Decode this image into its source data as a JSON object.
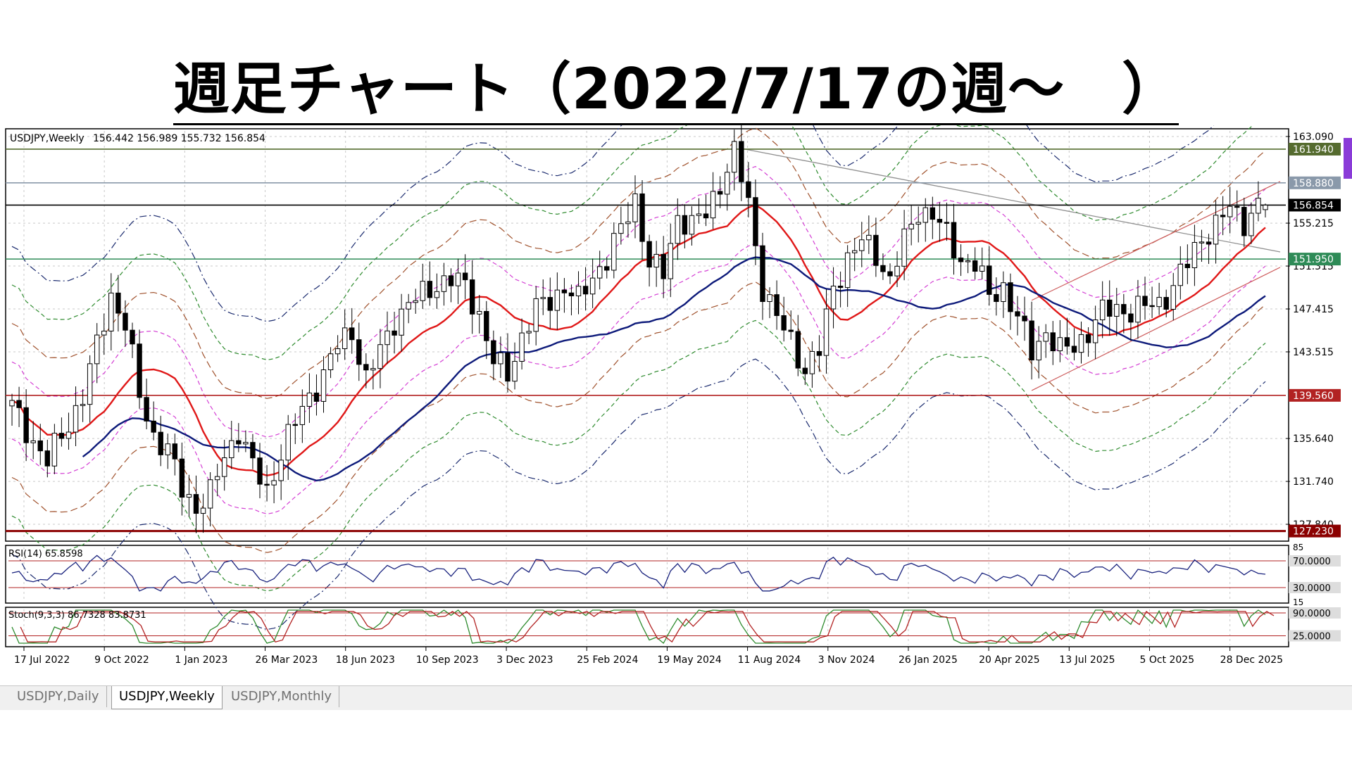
{
  "title": "週足チャート（2022/7/17の週～　）",
  "chart_data": {
    "type": "candlestick",
    "symbol_label": "USDJPY,Weekly",
    "ohlc_label": "156.442 156.989 155.732 156.854",
    "ohlc": {
      "open": 156.442,
      "high": 156.989,
      "low": 155.732,
      "close": 156.854
    },
    "y_ticks": [
      "163.090",
      "155.215",
      "151.315",
      "147.415",
      "143.515",
      "135.640",
      "131.740",
      "127.840"
    ],
    "y_range": [
      126.5,
      163.6
    ],
    "price_marks": [
      {
        "label": "161.940",
        "value": 161.94,
        "color": "#556b2f"
      },
      {
        "label": "158.880",
        "value": 158.88,
        "color": "#8a99aa"
      },
      {
        "label": "156.854",
        "value": 156.854,
        "color": "#000000"
      },
      {
        "label": "151.950",
        "value": 151.95,
        "color": "#2e8b57"
      },
      {
        "label": "139.560",
        "value": 139.56,
        "color": "#b22222"
      },
      {
        "label": "127.230",
        "value": 127.23,
        "color": "#8b0000"
      }
    ],
    "x_labels": [
      "17 Jul 2022",
      "9 Oct 2022",
      "1 Jan 2023",
      "26 Mar 2023",
      "18 Jun 2023",
      "10 Sep 2023",
      "3 Dec 2023",
      "25 Feb 2024",
      "19 May 2024",
      "11 Aug 2024",
      "3 Nov 2024",
      "26 Jan 2025",
      "20 Apr 2025",
      "13 Jul 2025",
      "5 Oct 2025",
      "28 Dec 2025"
    ],
    "weekly_close_anchors": [
      [
        0,
        138.5
      ],
      [
        5,
        133.5
      ],
      [
        10,
        139.5
      ],
      [
        12,
        144.0
      ],
      [
        14,
        148.8
      ],
      [
        16,
        146.0
      ],
      [
        18,
        139.5
      ],
      [
        20,
        136.0
      ],
      [
        22,
        134.5
      ],
      [
        24,
        131.0
      ],
      [
        26,
        129.5
      ],
      [
        28,
        130.5
      ],
      [
        30,
        134.0
      ],
      [
        32,
        136.5
      ],
      [
        34,
        133.0
      ],
      [
        36,
        130.8
      ],
      [
        38,
        134.5
      ],
      [
        40,
        137.0
      ],
      [
        42,
        139.5
      ],
      [
        44,
        141.5
      ],
      [
        46,
        144.0
      ],
      [
        48,
        145.5
      ],
      [
        50,
        141.0
      ],
      [
        52,
        143.5
      ],
      [
        54,
        146.5
      ],
      [
        56,
        147.8
      ],
      [
        58,
        148.7
      ],
      [
        60,
        149.8
      ],
      [
        62,
        150.0
      ],
      [
        64,
        149.5
      ],
      [
        66,
        147.0
      ],
      [
        68,
        142.5
      ],
      [
        70,
        141.5
      ],
      [
        72,
        145.0
      ],
      [
        74,
        147.3
      ],
      [
        76,
        148.3
      ],
      [
        78,
        149.5
      ],
      [
        80,
        148.0
      ],
      [
        82,
        150.5
      ],
      [
        84,
        152.0
      ],
      [
        86,
        154.5
      ],
      [
        88,
        157.5
      ],
      [
        90,
        151.5
      ],
      [
        92,
        150.5
      ],
      [
        94,
        156.0
      ],
      [
        96,
        155.0
      ],
      [
        98,
        156.0
      ],
      [
        100,
        159.0
      ],
      [
        102,
        161.5
      ],
      [
        104,
        157.0
      ],
      [
        106,
        149.5
      ],
      [
        108,
        146.5
      ],
      [
        110,
        144.5
      ],
      [
        112,
        142.0
      ],
      [
        114,
        143.5
      ],
      [
        116,
        149.5
      ],
      [
        118,
        152.0
      ],
      [
        120,
        153.5
      ],
      [
        122,
        152.5
      ],
      [
        124,
        150.0
      ],
      [
        126,
        153.5
      ],
      [
        128,
        156.5
      ],
      [
        130,
        156.0
      ],
      [
        132,
        154.0
      ],
      [
        134,
        152.0
      ],
      [
        136,
        151.5
      ],
      [
        138,
        148.5
      ],
      [
        140,
        149.5
      ],
      [
        142,
        146.5
      ],
      [
        144,
        143.5
      ],
      [
        146,
        145.5
      ],
      [
        148,
        143.5
      ],
      [
        150,
        144.0
      ],
      [
        152,
        145.5
      ],
      [
        154,
        147.0
      ],
      [
        156,
        147.5
      ],
      [
        158,
        147.3
      ],
      [
        160,
        147.5
      ],
      [
        162,
        148.0
      ],
      [
        164,
        149.5
      ],
      [
        166,
        151.5
      ],
      [
        168,
        154.0
      ],
      [
        170,
        155.0
      ],
      [
        172,
        156.5
      ],
      [
        174,
        155.5
      ],
      [
        176,
        156.85
      ]
    ],
    "indicators": [
      {
        "label": "RSI(14) 65.8598",
        "levels": [
          {
            "label": "70.0000",
            "value": 70
          },
          {
            "label": "30.0000",
            "value": 30
          }
        ],
        "ticks": [
          "85",
          "15"
        ]
      },
      {
        "label": "Stoch(9,3,3) 86.7328 83.8731",
        "levels": [
          {
            "label": "90.0000",
            "value": 90
          },
          {
            "label": "25.0000",
            "value": 25
          }
        ]
      }
    ]
  },
  "tabs": [
    "USDJPY,Daily",
    "USDJPY,Weekly",
    "USDJPY,Monthly"
  ],
  "active_tab": "USDJPY,Weekly"
}
